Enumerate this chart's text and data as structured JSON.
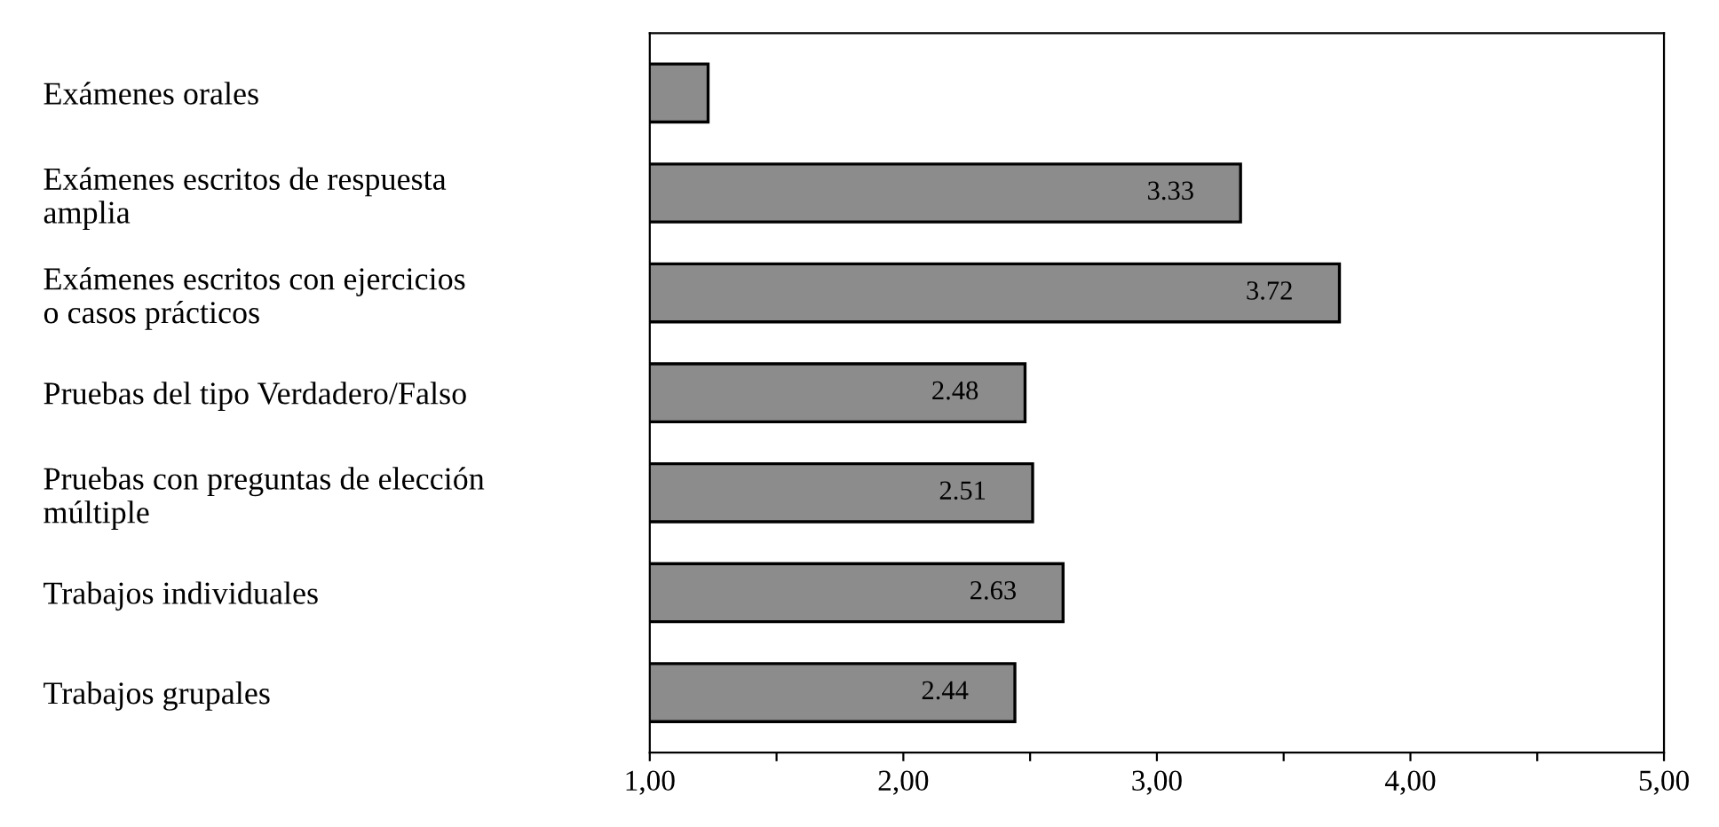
{
  "chart_data": {
    "type": "bar",
    "orientation": "horizontal",
    "categories": [
      "Exámenes orales",
      "Exámenes escritos de respuesta\namplia",
      "Exámenes escritos con ejercicios\no casos prácticos",
      "Pruebas del tipo Verdadero/Falso",
      "Pruebas con preguntas de elección\nmúltiple",
      "Trabajos individuales",
      "Trabajos grupales"
    ],
    "values": [
      1.23,
      3.33,
      3.72,
      2.48,
      2.51,
      2.63,
      2.44
    ],
    "value_labels": [
      null,
      "3.33",
      "3.72",
      "2.48",
      "2.51",
      "2.63",
      "2.44"
    ],
    "color": "#8c8c8c",
    "xlim": [
      1,
      5
    ],
    "xticks": [
      {
        "value": 1,
        "label": "1,00"
      },
      {
        "value": 1.5,
        "label": null
      },
      {
        "value": 2,
        "label": "2,00"
      },
      {
        "value": 2.5,
        "label": null
      },
      {
        "value": 3,
        "label": "3,00"
      },
      {
        "value": 3.5,
        "label": null
      },
      {
        "value": 4,
        "label": "4,00"
      },
      {
        "value": 4.5,
        "label": null
      },
      {
        "value": 5,
        "label": "5,00"
      }
    ],
    "grid": false,
    "legend": false
  }
}
